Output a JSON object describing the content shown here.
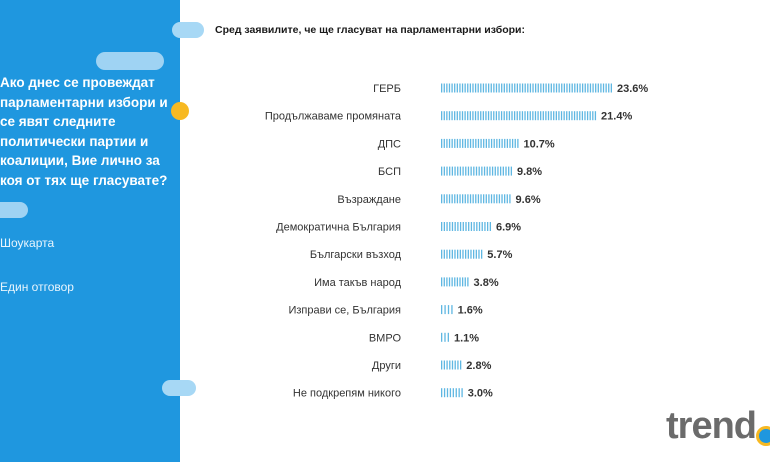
{
  "question": "Ако днес се провеждат\nпарламентарни избори и\nсе явят следните\nполитически партии и\nкоалиции, Вие лично за\nкоя от тях ще гласувате?",
  "method": "Шоукарта",
  "answer_type": "Един отговор",
  "logo_text": "trend",
  "colors": {
    "panel": "#1f97df",
    "bar": "#5fb7e2",
    "accent": "#f7b922"
  },
  "chart_data": {
    "type": "bar",
    "orientation": "horizontal",
    "title": "Сред заявилите, че ще гласуват на парламентарни избори:",
    "categories": [
      "ГЕРБ",
      "Продължаваме промяната",
      "ДПС",
      "БСП",
      "Възраждане",
      "Демократична България",
      "Български възход",
      "Има такъв народ",
      "Изправи се, България",
      "ВМРО",
      "Други",
      "Не подкрепям никого"
    ],
    "values": [
      23.6,
      21.4,
      10.7,
      9.8,
      9.6,
      6.9,
      5.7,
      3.8,
      1.6,
      1.1,
      2.8,
      3.0
    ],
    "value_labels": [
      "23.6%",
      "21.4%",
      "10.7%",
      "9.8%",
      "9.6%",
      "6.9%",
      "5.7%",
      "3.8%",
      "1.6%",
      "1.1%",
      "2.8%",
      "3.0%"
    ],
    "unit": "%",
    "xlim": [
      0,
      23.6
    ]
  }
}
